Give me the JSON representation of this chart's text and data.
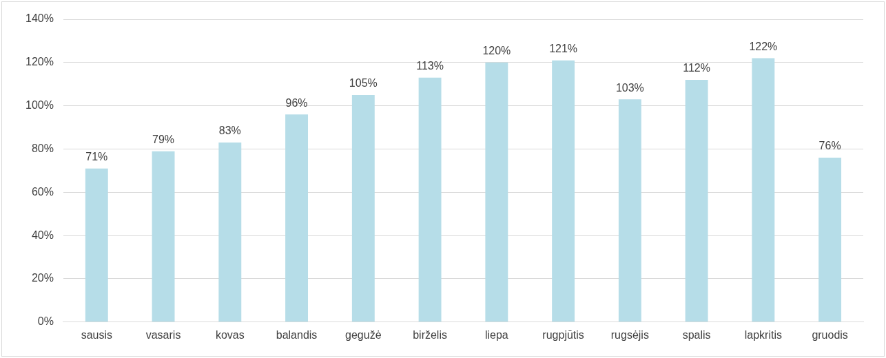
{
  "chart_data": {
    "type": "bar",
    "categories": [
      "sausis",
      "vasaris",
      "kovas",
      "balandis",
      "gegužė",
      "birželis",
      "liepa",
      "rugpjūtis",
      "rugsėjis",
      "spalis",
      "lapkritis",
      "gruodis"
    ],
    "values": [
      71,
      79,
      83,
      96,
      105,
      113,
      120,
      121,
      103,
      112,
      122,
      76
    ],
    "value_labels": [
      "71%",
      "79%",
      "83%",
      "96%",
      "105%",
      "113%",
      "120%",
      "121%",
      "103%",
      "112%",
      "122%",
      "76%"
    ],
    "color": "#b6dde8",
    "ylim": [
      0,
      140
    ],
    "yticks": [
      {
        "value": 0,
        "label": "0%"
      },
      {
        "value": 20,
        "label": "20%"
      },
      {
        "value": 40,
        "label": "40%"
      },
      {
        "value": 60,
        "label": "60%"
      },
      {
        "value": 80,
        "label": "80%"
      },
      {
        "value": 100,
        "label": "100%"
      },
      {
        "value": 120,
        "label": "120%"
      },
      {
        "value": 140,
        "label": "140%"
      }
    ],
    "grid": "y"
  }
}
